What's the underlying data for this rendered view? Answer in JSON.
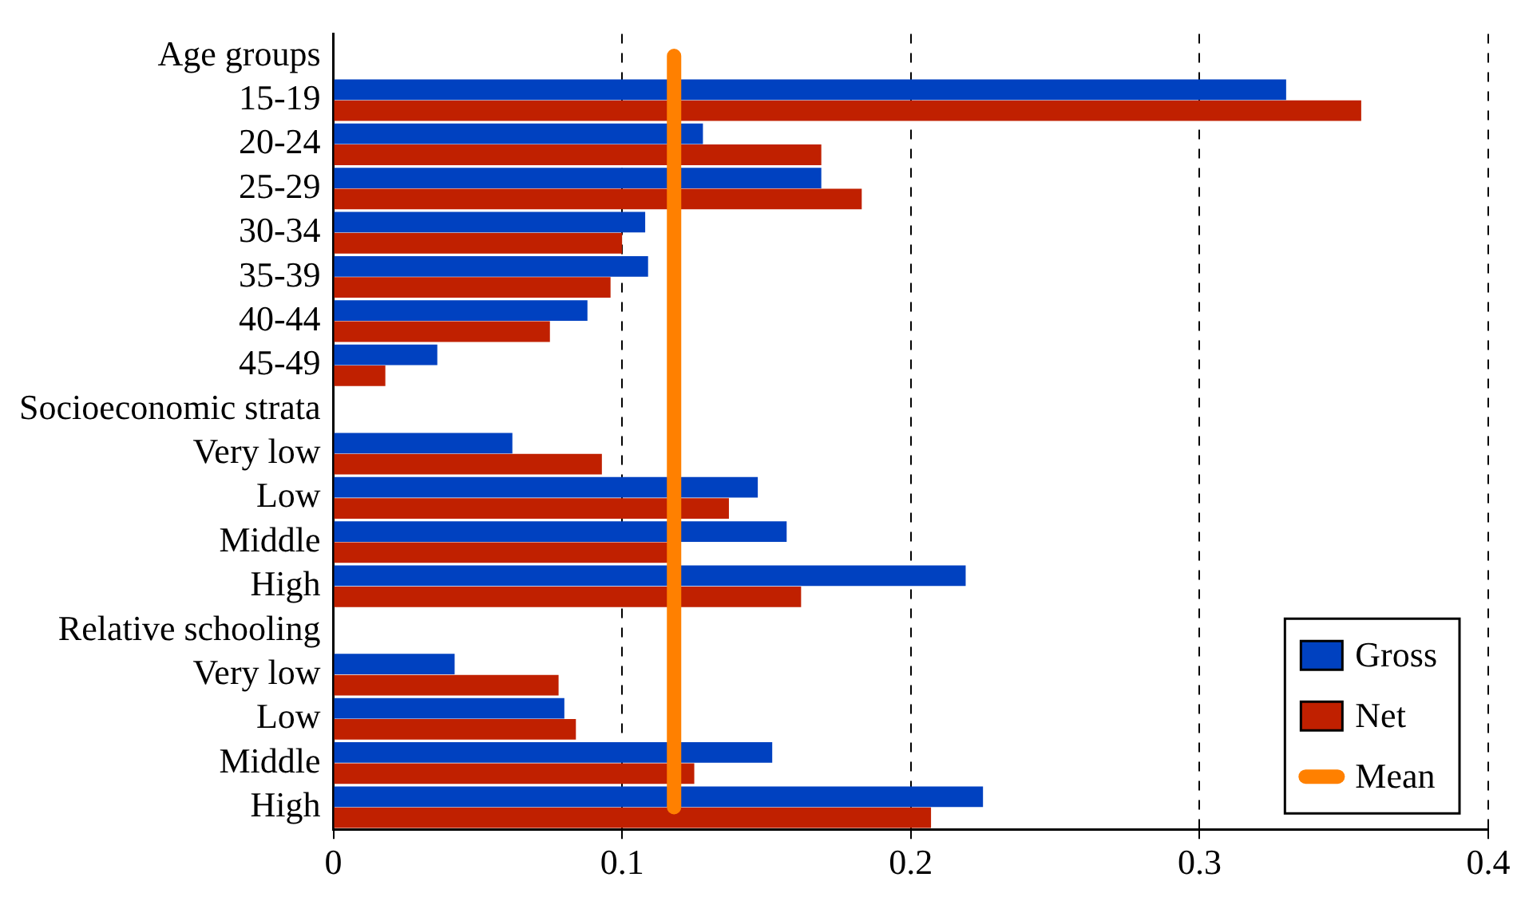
{
  "chart_data": {
    "type": "bar",
    "orientation": "horizontal",
    "categories": [
      "Age groups",
      "15-19",
      "20-24",
      "25-29",
      "30-34",
      "35-39",
      "40-44",
      "45-49",
      "Socioeconomic strata",
      "Very low",
      "Low",
      "Middle",
      "High",
      "Relative schooling",
      "Very low",
      "Low",
      "Middle",
      "High"
    ],
    "series": [
      {
        "name": "Gross",
        "color": "#0041c0",
        "values": [
          null,
          0.33,
          0.128,
          0.169,
          0.108,
          0.109,
          0.088,
          0.036,
          null,
          0.062,
          0.147,
          0.157,
          0.219,
          null,
          0.042,
          0.08,
          0.152,
          0.225
        ]
      },
      {
        "name": "Net",
        "color": "#c02000",
        "values": [
          null,
          0.356,
          0.169,
          0.183,
          0.1,
          0.096,
          0.075,
          0.018,
          null,
          0.093,
          0.137,
          0.116,
          0.162,
          null,
          0.078,
          0.084,
          0.125,
          0.207
        ]
      },
      {
        "name": "Mean",
        "type": "line",
        "color": "#ff8000",
        "values": [
          0.118,
          0.118,
          0.118,
          0.118,
          0.118,
          0.118,
          0.118,
          0.118,
          0.118,
          0.118,
          0.118,
          0.118,
          0.118,
          0.118,
          0.118,
          0.118,
          0.118,
          0.118
        ]
      }
    ],
    "xlim": [
      0,
      0.4
    ],
    "xticks": [
      0,
      0.1,
      0.2,
      0.3,
      0.4
    ],
    "grid": "x",
    "legend": "bottom right"
  }
}
